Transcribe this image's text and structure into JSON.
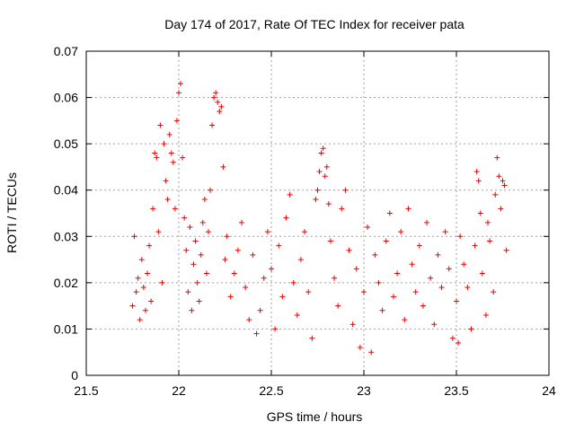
{
  "chart_data": {
    "type": "scatter",
    "title": "Day 174 of 2017, Rate Of TEC Index for receiver pata",
    "xlabel": "GPS time / hours",
    "ylabel": "ROTI / TECUs",
    "xlim": [
      21.5,
      24
    ],
    "ylim": [
      0,
      0.07
    ],
    "xticks": [
      21.5,
      22,
      22.5,
      23,
      23.5,
      24
    ],
    "xtick_labels": [
      "21.5",
      "22",
      "22.5",
      "23",
      "23.5",
      "24"
    ],
    "yticks": [
      0,
      0.01,
      0.02,
      0.03,
      0.04,
      0.05,
      0.06,
      0.07
    ],
    "ytick_labels": [
      "0",
      "0.01",
      "0.02",
      "0.03",
      "0.04",
      "0.05",
      "0.06",
      "0.07"
    ],
    "grid": true,
    "legend": "none",
    "marker": "plus",
    "color": "#ee0000",
    "x_range_of_data": [
      21.75,
      23.77
    ],
    "points": [
      [
        21.75,
        0.015
      ],
      [
        21.76,
        0.03
      ],
      [
        21.77,
        0.018
      ],
      [
        21.78,
        0.021
      ],
      [
        21.79,
        0.012
      ],
      [
        21.8,
        0.025
      ],
      [
        21.81,
        0.019
      ],
      [
        21.82,
        0.014
      ],
      [
        21.83,
        0.022
      ],
      [
        21.84,
        0.028
      ],
      [
        21.85,
        0.016
      ],
      [
        21.86,
        0.036
      ],
      [
        21.87,
        0.048
      ],
      [
        21.88,
        0.047
      ],
      [
        21.89,
        0.031
      ],
      [
        21.9,
        0.054
      ],
      [
        21.91,
        0.02
      ],
      [
        21.92,
        0.05
      ],
      [
        21.93,
        0.042
      ],
      [
        21.94,
        0.038
      ],
      [
        21.95,
        0.052
      ],
      [
        21.96,
        0.048
      ],
      [
        21.97,
        0.046
      ],
      [
        21.98,
        0.036
      ],
      [
        21.99,
        0.055
      ],
      [
        22.0,
        0.061
      ],
      [
        22.01,
        0.063
      ],
      [
        22.02,
        0.047
      ],
      [
        22.03,
        0.034
      ],
      [
        22.04,
        0.027
      ],
      [
        22.05,
        0.018
      ],
      [
        22.06,
        0.032
      ],
      [
        22.07,
        0.014
      ],
      [
        22.08,
        0.024
      ],
      [
        22.09,
        0.029
      ],
      [
        22.1,
        0.02
      ],
      [
        22.11,
        0.016
      ],
      [
        22.12,
        0.026
      ],
      [
        22.13,
        0.033
      ],
      [
        22.14,
        0.038
      ],
      [
        22.15,
        0.022
      ],
      [
        22.16,
        0.031
      ],
      [
        22.17,
        0.04
      ],
      [
        22.18,
        0.054
      ],
      [
        22.19,
        0.06
      ],
      [
        22.2,
        0.061
      ],
      [
        22.21,
        0.059
      ],
      [
        22.22,
        0.057
      ],
      [
        22.23,
        0.058
      ],
      [
        22.24,
        0.045
      ],
      [
        22.25,
        0.025
      ],
      [
        22.26,
        0.03
      ],
      [
        22.28,
        0.017
      ],
      [
        22.3,
        0.022
      ],
      [
        22.32,
        0.027
      ],
      [
        22.34,
        0.033
      ],
      [
        22.36,
        0.019
      ],
      [
        22.38,
        0.012
      ],
      [
        22.4,
        0.026
      ],
      [
        22.42,
        0.009
      ],
      [
        22.44,
        0.014
      ],
      [
        22.46,
        0.021
      ],
      [
        22.48,
        0.031
      ],
      [
        22.5,
        0.023
      ],
      [
        22.52,
        0.01
      ],
      [
        22.54,
        0.028
      ],
      [
        22.56,
        0.017
      ],
      [
        22.58,
        0.034
      ],
      [
        22.6,
        0.039
      ],
      [
        22.62,
        0.02
      ],
      [
        22.64,
        0.013
      ],
      [
        22.66,
        0.025
      ],
      [
        22.68,
        0.031
      ],
      [
        22.7,
        0.018
      ],
      [
        22.72,
        0.008
      ],
      [
        22.74,
        0.038
      ],
      [
        22.75,
        0.04
      ],
      [
        22.76,
        0.044
      ],
      [
        22.77,
        0.048
      ],
      [
        22.78,
        0.049
      ],
      [
        22.79,
        0.043
      ],
      [
        22.8,
        0.045
      ],
      [
        22.81,
        0.037
      ],
      [
        22.82,
        0.029
      ],
      [
        22.84,
        0.021
      ],
      [
        22.86,
        0.015
      ],
      [
        22.88,
        0.036
      ],
      [
        22.9,
        0.04
      ],
      [
        22.92,
        0.027
      ],
      [
        22.94,
        0.011
      ],
      [
        22.96,
        0.023
      ],
      [
        22.98,
        0.006
      ],
      [
        23.0,
        0.018
      ],
      [
        23.02,
        0.032
      ],
      [
        23.04,
        0.005
      ],
      [
        23.06,
        0.026
      ],
      [
        23.08,
        0.02
      ],
      [
        23.1,
        0.014
      ],
      [
        23.12,
        0.029
      ],
      [
        23.14,
        0.035
      ],
      [
        23.16,
        0.017
      ],
      [
        23.18,
        0.022
      ],
      [
        23.2,
        0.031
      ],
      [
        23.22,
        0.012
      ],
      [
        23.24,
        0.036
      ],
      [
        23.26,
        0.024
      ],
      [
        23.28,
        0.018
      ],
      [
        23.3,
        0.028
      ],
      [
        23.32,
        0.015
      ],
      [
        23.34,
        0.033
      ],
      [
        23.36,
        0.021
      ],
      [
        23.38,
        0.011
      ],
      [
        23.4,
        0.026
      ],
      [
        23.42,
        0.019
      ],
      [
        23.44,
        0.031
      ],
      [
        23.46,
        0.023
      ],
      [
        23.48,
        0.008
      ],
      [
        23.5,
        0.016
      ],
      [
        23.51,
        0.007
      ],
      [
        23.52,
        0.03
      ],
      [
        23.54,
        0.024
      ],
      [
        23.56,
        0.019
      ],
      [
        23.58,
        0.01
      ],
      [
        23.6,
        0.028
      ],
      [
        23.61,
        0.044
      ],
      [
        23.62,
        0.042
      ],
      [
        23.63,
        0.035
      ],
      [
        23.64,
        0.022
      ],
      [
        23.66,
        0.013
      ],
      [
        23.67,
        0.033
      ],
      [
        23.68,
        0.029
      ],
      [
        23.7,
        0.018
      ],
      [
        23.71,
        0.039
      ],
      [
        23.72,
        0.047
      ],
      [
        23.73,
        0.043
      ],
      [
        23.74,
        0.036
      ],
      [
        23.75,
        0.042
      ],
      [
        23.76,
        0.041
      ],
      [
        23.77,
        0.027
      ]
    ]
  }
}
